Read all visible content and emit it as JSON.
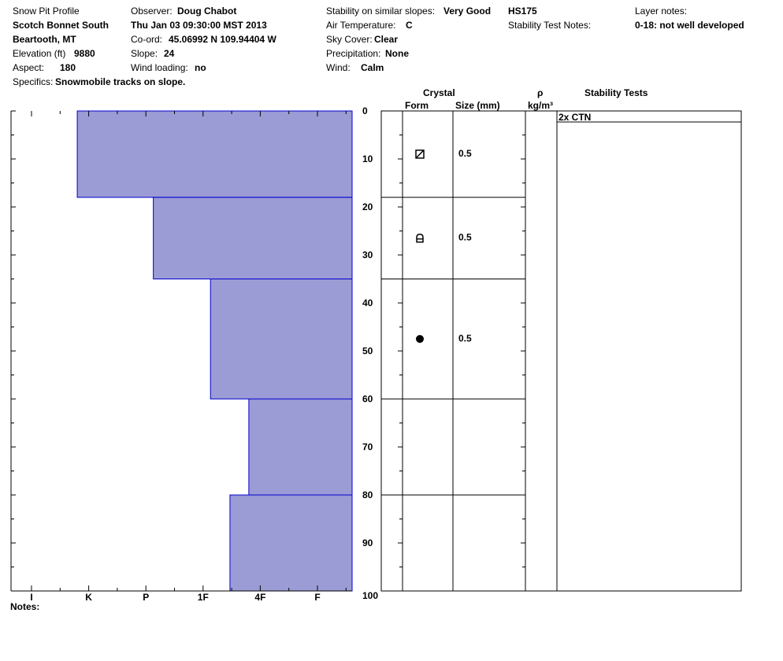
{
  "header": {
    "title": "Snow Pit Profile",
    "location": "Scotch Bonnet South",
    "region": "Beartooth, MT",
    "elevation_label": "Elevation (ft)",
    "elevation_value": "9880",
    "aspect_label": "Aspect:",
    "aspect_value": "180",
    "specifics_label": "Specifics:",
    "specifics_value": "Snowmobile tracks on slope.",
    "observer_label": "Observer:",
    "observer_value": "Doug Chabot",
    "datetime": "Thu Jan 03 09:30:00 MST 2013",
    "coord_label": "Co-ord:",
    "coord_value": "45.06992 N 109.94404 W",
    "slope_label": "Slope:",
    "slope_value": "24",
    "wind_loading_label": "Wind loading:",
    "wind_loading_value": "no",
    "stability_label": "Stability on similar slopes:",
    "stability_value": "Very Good",
    "air_temp_label": "Air Temperature:",
    "air_temp_value": "C",
    "sky_label": "Sky Cover:",
    "sky_value": "Clear",
    "precip_label": "Precipitation:",
    "precip_value": "None",
    "wind_label": "Wind:",
    "wind_value": "Calm",
    "hs": "HS175",
    "stability_test_notes_label": "Stability Test Notes:",
    "layer_notes_label": "Layer notes:",
    "layer_notes_value": "0-18: not well developed"
  },
  "columns": {
    "crystal": "Crystal",
    "form": "Form",
    "size": "Size (mm)",
    "rho": "ρ",
    "density_unit": "kg/m³",
    "stability_tests": "Stability Tests"
  },
  "notes_label": "Notes:",
  "colors": {
    "hardness_fill": "#9b9bd6",
    "hardness_stroke": "#0000cc"
  },
  "chart_data": {
    "type": "bar",
    "orientation": "horizontal-step",
    "hardness_ticks": [
      "I",
      "K",
      "P",
      "1F",
      "4F",
      "F"
    ],
    "depth_ticks": [
      "0",
      "10",
      "20",
      "30",
      "40",
      "50",
      "60",
      "70",
      "80",
      "90",
      "100"
    ],
    "depth_range": [
      0,
      100
    ],
    "hardness_layers": [
      {
        "top": 0,
        "bottom": 18,
        "hardness": 0.8
      },
      {
        "top": 18,
        "bottom": 35,
        "hardness": 2.13
      },
      {
        "top": 35,
        "bottom": 60,
        "hardness": 3.13
      },
      {
        "top": 60,
        "bottom": 80,
        "hardness": 3.8
      },
      {
        "top": 80,
        "bottom": 100,
        "hardness": 3.47
      }
    ],
    "layer_boundaries": [
      18,
      35,
      60,
      80
    ],
    "crystals": [
      {
        "depth": 9,
        "form": "faceted-rounded",
        "size": "0.5"
      },
      {
        "depth": 26.5,
        "form": "depth-hoar",
        "size": "0.5"
      },
      {
        "depth": 47.5,
        "form": "rounded",
        "size": "0.5"
      }
    ],
    "stability_tests": [
      {
        "label": "2x CTN"
      }
    ]
  }
}
